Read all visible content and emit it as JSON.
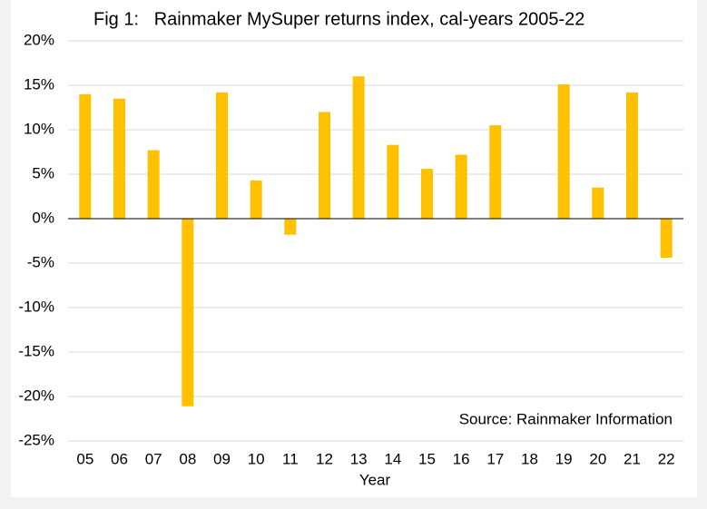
{
  "chart_data": {
    "type": "bar",
    "title": "Fig 1:   Rainmaker MySuper returns index, cal-years 2005-22",
    "x_label": "Year",
    "annotation": "Source: Rainmaker Information",
    "categories": [
      "05",
      "06",
      "07",
      "08",
      "09",
      "10",
      "11",
      "12",
      "13",
      "14",
      "15",
      "16",
      "17",
      "18",
      "19",
      "20",
      "21",
      "22"
    ],
    "values": [
      14.0,
      13.5,
      7.7,
      -21.1,
      14.2,
      4.3,
      -1.8,
      12.0,
      16.0,
      8.3,
      5.6,
      7.2,
      10.5,
      0,
      15.1,
      3.5,
      14.2,
      -4.4
    ],
    "color": "#ffc000",
    "ylim": [
      -25,
      20
    ],
    "yticks": [
      {
        "value": -25,
        "label": "-25%"
      },
      {
        "value": -20,
        "label": "-20%"
      },
      {
        "value": -15,
        "label": "-15%"
      },
      {
        "value": -10,
        "label": "-10%"
      },
      {
        "value": -5,
        "label": "-5%"
      },
      {
        "value": 0,
        "label": "0%"
      },
      {
        "value": 5,
        "label": "5%"
      },
      {
        "value": 10,
        "label": "10%"
      },
      {
        "value": 15,
        "label": "15%"
      },
      {
        "value": 20,
        "label": "20%"
      }
    ],
    "grid": true
  }
}
